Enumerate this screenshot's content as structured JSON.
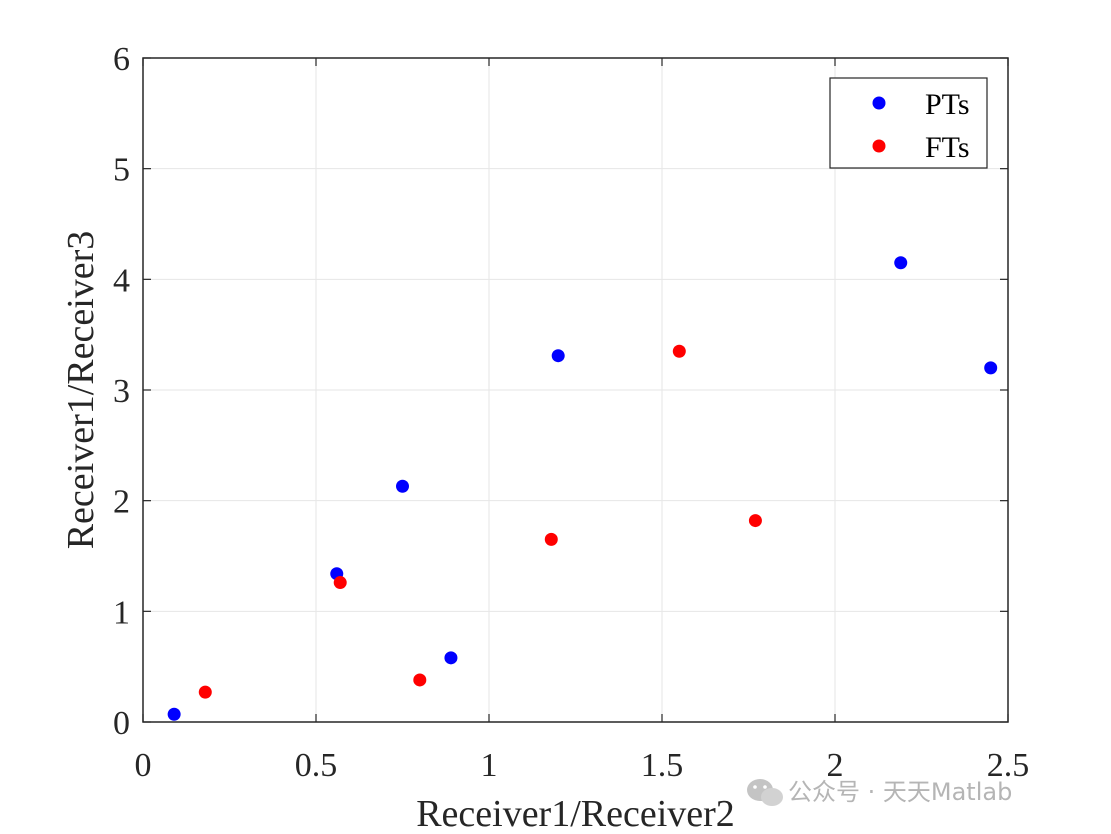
{
  "chart_data": {
    "type": "scatter",
    "xlabel": "Receiver1/Receiver2",
    "ylabel": "Receiver1/Receiver3",
    "xlim": [
      0,
      2.5
    ],
    "ylim": [
      0,
      6
    ],
    "xticks": [
      "0",
      "0.5",
      "1",
      "1.5",
      "2",
      "2.5"
    ],
    "yticks": [
      "0",
      "1",
      "2",
      "3",
      "4",
      "5",
      "6"
    ],
    "grid": true,
    "legend_position": "top-right",
    "series": [
      {
        "name": "PTs",
        "color": "#0000ff",
        "points": [
          {
            "x": 0.09,
            "y": 0.07
          },
          {
            "x": 0.56,
            "y": 1.34
          },
          {
            "x": 0.75,
            "y": 2.13
          },
          {
            "x": 0.89,
            "y": 0.58
          },
          {
            "x": 1.2,
            "y": 3.31
          },
          {
            "x": 2.19,
            "y": 4.15
          },
          {
            "x": 2.45,
            "y": 3.2
          }
        ]
      },
      {
        "name": "FTs",
        "color": "#ff0000",
        "points": [
          {
            "x": 0.18,
            "y": 0.27
          },
          {
            "x": 0.57,
            "y": 1.26
          },
          {
            "x": 0.8,
            "y": 0.38
          },
          {
            "x": 1.18,
            "y": 1.65
          },
          {
            "x": 1.55,
            "y": 3.35
          },
          {
            "x": 1.77,
            "y": 1.82
          }
        ]
      }
    ]
  },
  "watermark": {
    "text": "公众号 · 天天Matlab",
    "icon": "wechat-icon"
  }
}
